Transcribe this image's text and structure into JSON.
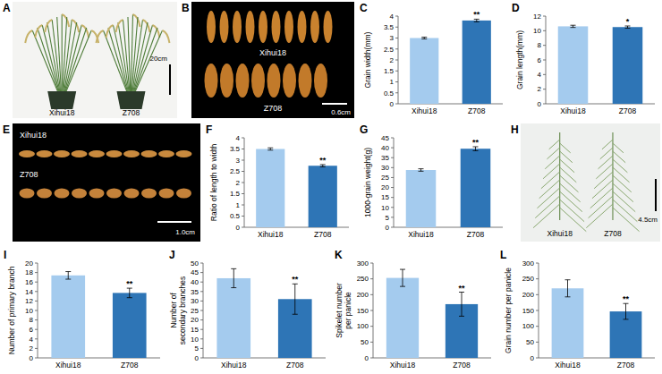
{
  "chart_data": [
    {
      "panel": "C",
      "type": "bar",
      "y_label": "Grain width(mm)",
      "categories": [
        "Xihui18",
        "Z708"
      ],
      "values": [
        3.0,
        3.8
      ],
      "errors": [
        0.04,
        0.06
      ],
      "significance_labels": [
        null,
        "**"
      ],
      "colors": [
        "#a4cbee",
        "#2e75b6"
      ],
      "ylim": [
        0,
        4
      ],
      "yticks": [
        0,
        0.5,
        1,
        1.5,
        2,
        2.5,
        3,
        3.5,
        4
      ]
    },
    {
      "panel": "D",
      "type": "bar",
      "y_label": "Grain length(mm)",
      "categories": [
        "Xihui18",
        "Z708"
      ],
      "values": [
        10.6,
        10.5
      ],
      "errors": [
        0.15,
        0.15
      ],
      "significance_labels": [
        null,
        "*"
      ],
      "colors": [
        "#a4cbee",
        "#2e75b6"
      ],
      "ylim": [
        0,
        12
      ],
      "yticks": [
        0,
        2,
        4,
        6,
        8,
        10,
        12
      ]
    },
    {
      "panel": "F",
      "type": "bar",
      "y_label": "Ratio of length to width",
      "categories": [
        "Xihui18",
        "Z708"
      ],
      "values": [
        3.5,
        2.75
      ],
      "errors": [
        0.05,
        0.05
      ],
      "significance_labels": [
        null,
        "**"
      ],
      "colors": [
        "#a4cbee",
        "#2e75b6"
      ],
      "ylim": [
        0,
        4
      ],
      "yticks": [
        0,
        0.5,
        1,
        1.5,
        2,
        2.5,
        3,
        3.5,
        4
      ]
    },
    {
      "panel": "G",
      "type": "bar",
      "y_label": "1000-grain weight(g)",
      "categories": [
        "Xihui18",
        "Z708"
      ],
      "values": [
        28.8,
        39.5
      ],
      "errors": [
        0.6,
        1.0
      ],
      "significance_labels": [
        null,
        "**"
      ],
      "colors": [
        "#a4cbee",
        "#2e75b6"
      ],
      "ylim": [
        0,
        45
      ],
      "yticks": [
        0,
        5,
        10,
        15,
        20,
        25,
        30,
        35,
        40,
        45
      ]
    },
    {
      "panel": "I",
      "type": "bar",
      "y_label": "Number of primary branch",
      "categories": [
        "Xihui18",
        "Z708"
      ],
      "values": [
        17.4,
        13.7
      ],
      "errors": [
        0.8,
        1.0
      ],
      "significance_labels": [
        null,
        "**"
      ],
      "colors": [
        "#a4cbee",
        "#2e75b6"
      ],
      "ylim": [
        0,
        20
      ],
      "yticks": [
        0,
        2,
        4,
        6,
        8,
        10,
        12,
        14,
        16,
        18,
        20
      ]
    },
    {
      "panel": "J",
      "type": "bar",
      "y_label": "Number of secondary branches",
      "categories": [
        "Xihui18",
        "Z708"
      ],
      "values": [
        42,
        31
      ],
      "errors": [
        5,
        8
      ],
      "significance_labels": [
        null,
        "**"
      ],
      "colors": [
        "#a4cbee",
        "#2e75b6"
      ],
      "ylim": [
        0,
        50
      ],
      "yticks": [
        0,
        5,
        10,
        15,
        20,
        25,
        30,
        35,
        40,
        45,
        50
      ]
    },
    {
      "panel": "K",
      "type": "bar",
      "y_label": "Spikelet number per panicle",
      "categories": [
        "Xihui18",
        "Z708"
      ],
      "values": [
        253,
        170
      ],
      "errors": [
        27,
        38
      ],
      "significance_labels": [
        null,
        "**"
      ],
      "colors": [
        "#a4cbee",
        "#2e75b6"
      ],
      "ylim": [
        0,
        300
      ],
      "yticks": [
        0,
        50,
        100,
        150,
        200,
        250,
        300
      ]
    },
    {
      "panel": "L",
      "type": "bar",
      "y_label": "Grain number per panicle",
      "categories": [
        "Xihui18",
        "Z708"
      ],
      "values": [
        220,
        147
      ],
      "errors": [
        27,
        25
      ],
      "significance_labels": [
        null,
        "**"
      ],
      "colors": [
        "#a4cbee",
        "#2e75b6"
      ],
      "ylim": [
        0,
        300
      ],
      "yticks": [
        0,
        50,
        100,
        150,
        200,
        250,
        300
      ]
    }
  ],
  "photos": [
    {
      "panel": "A",
      "labels": [
        "Xihui18",
        "Z708"
      ],
      "scale_bar": "20cm"
    },
    {
      "panel": "B",
      "labels": [
        "Xihui18",
        "Z708"
      ],
      "scale_bar": "0.6cm"
    },
    {
      "panel": "E",
      "labels": [
        "Xihui18",
        "Z708"
      ],
      "scale_bar": "1.0cm"
    },
    {
      "panel": "H",
      "labels": [
        "Xihui18",
        "Z708"
      ],
      "scale_bar": "4.5cm"
    }
  ]
}
